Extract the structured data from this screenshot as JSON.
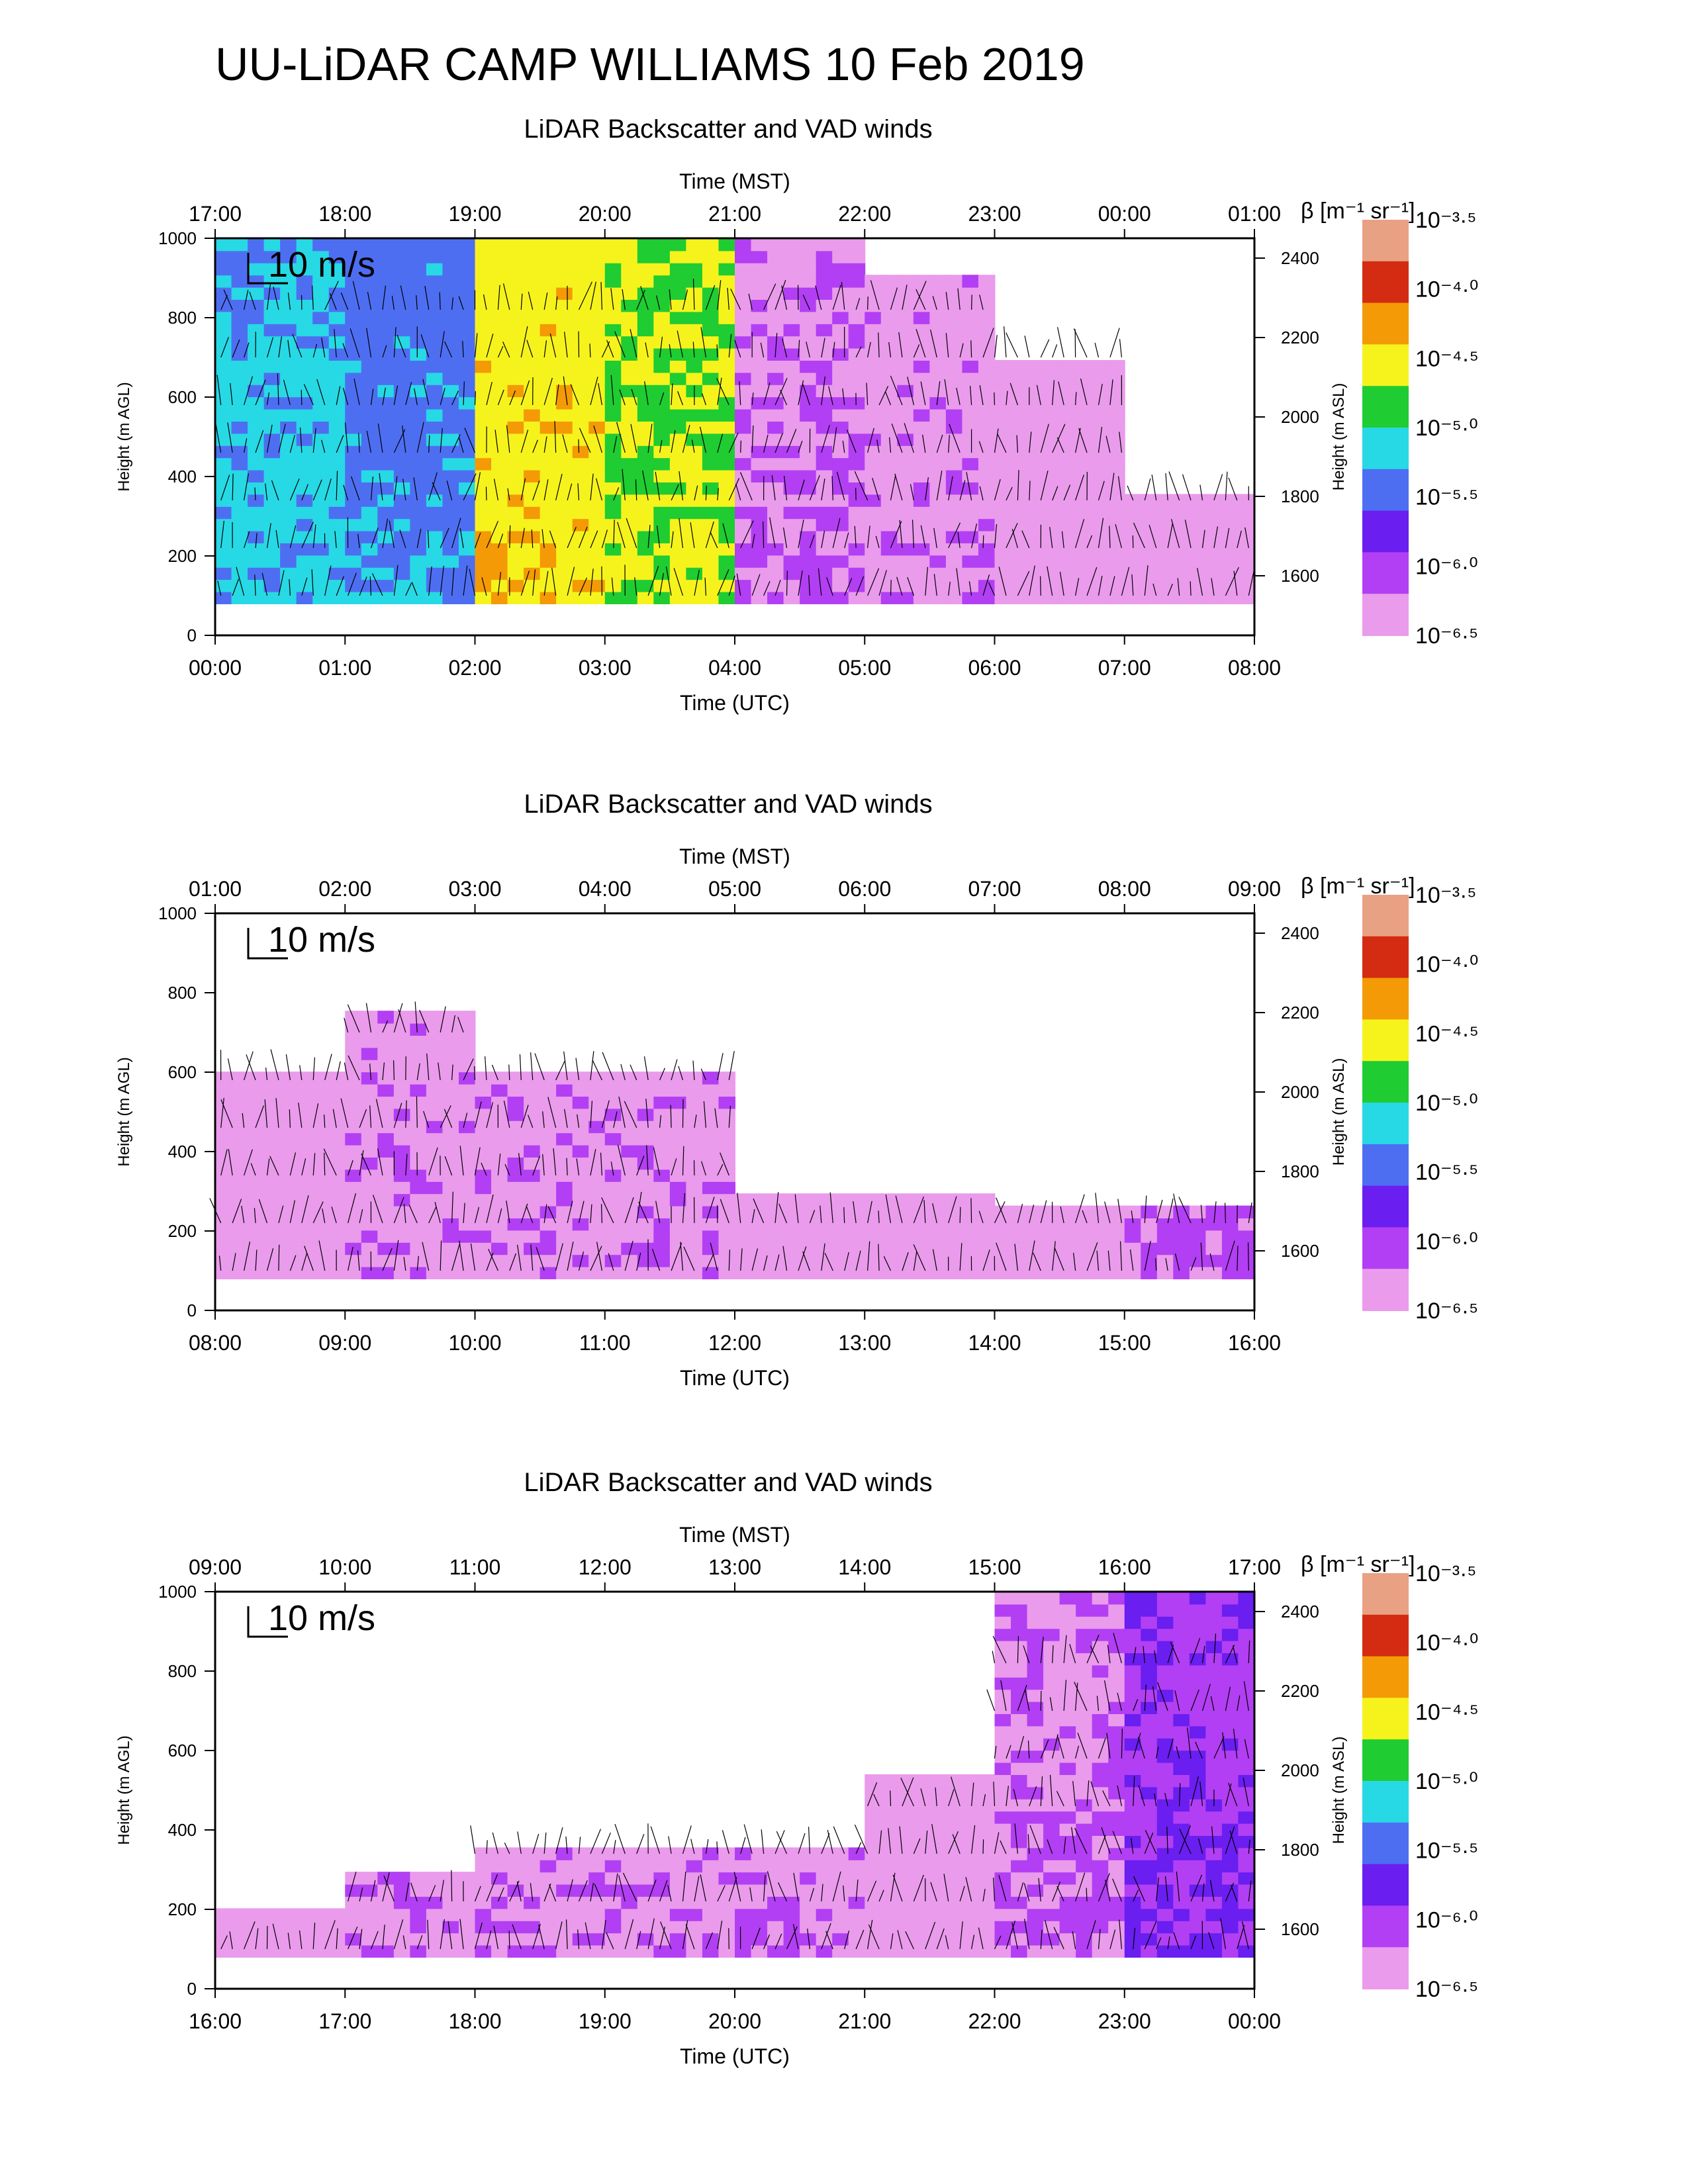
{
  "title": "UU-LiDAR CAMP WILLIAMS 10 Feb 2019",
  "colorbar": {
    "label": "β [m⁻¹ sr⁻¹]",
    "ticks": [
      "10⁻³·⁵",
      "10⁻⁴·⁰",
      "10⁻⁴·⁵",
      "10⁻⁵·⁰",
      "10⁻⁵·⁵",
      "10⁻⁶·⁰",
      "10⁻⁶·⁵"
    ],
    "colors": [
      "#e9a183",
      "#d32c12",
      "#f39a06",
      "#f6f31c",
      "#1fcc32",
      "#27d9e4",
      "#4e6ef2",
      "#6a1ef0",
      "#b23ff3",
      "#ea9bec"
    ]
  },
  "chart_data": [
    {
      "type": "heatmap",
      "title": "LiDAR Backscatter and VAD winds",
      "top_xlabel": "Time (MST)",
      "xlabel": "Time (UTC)",
      "ylabel": "Height (m AGL)",
      "y2label": "Height (m ASL)",
      "xticks_top": [
        "17:00",
        "18:00",
        "19:00",
        "20:00",
        "21:00",
        "22:00",
        "23:00",
        "00:00",
        "01:00"
      ],
      "xticks_bottom": [
        "00:00",
        "01:00",
        "02:00",
        "03:00",
        "04:00",
        "05:00",
        "06:00",
        "07:00",
        "08:00"
      ],
      "yticks": [
        "0",
        "200",
        "400",
        "600",
        "800",
        "1000"
      ],
      "ylim": [
        0,
        1000
      ],
      "y2ticks": [
        "1600",
        "1800",
        "2000",
        "2200",
        "2400"
      ],
      "y2lim": [
        1450,
        2450
      ],
      "wind_scale_label": "10 m/s",
      "backscatter_log10_by_hour": [
        -5.2,
        -5.4,
        -4.4,
        -4.6,
        -6.3,
        -6.4,
        -6.5,
        -6.5
      ],
      "data_top_m_by_hour": [
        1000,
        1000,
        1000,
        1000,
        1000,
        900,
        700,
        350
      ]
    },
    {
      "type": "heatmap",
      "title": "LiDAR Backscatter and VAD winds",
      "top_xlabel": "Time (MST)",
      "xlabel": "Time (UTC)",
      "ylabel": "Height (m AGL)",
      "y2label": "Height (m ASL)",
      "xticks_top": [
        "01:00",
        "02:00",
        "03:00",
        "04:00",
        "05:00",
        "06:00",
        "07:00",
        "08:00",
        "09:00"
      ],
      "xticks_bottom": [
        "08:00",
        "09:00",
        "10:00",
        "11:00",
        "12:00",
        "13:00",
        "14:00",
        "15:00",
        "16:00"
      ],
      "yticks": [
        "0",
        "200",
        "400",
        "600",
        "800",
        "1000"
      ],
      "ylim": [
        0,
        1000
      ],
      "y2ticks": [
        "1600",
        "1800",
        "2000",
        "2200",
        "2400"
      ],
      "y2lim": [
        1450,
        2450
      ],
      "wind_scale_label": "10 m/s",
      "backscatter_log10_by_hour": [
        -6.5,
        -6.4,
        -6.4,
        -6.4,
        -6.5,
        -6.5,
        -6.5,
        -6.3
      ],
      "data_top_m_by_hour": [
        600,
        750,
        600,
        600,
        300,
        300,
        250,
        250
      ]
    },
    {
      "type": "heatmap",
      "title": "LiDAR Backscatter and VAD winds",
      "top_xlabel": "Time (MST)",
      "xlabel": "Time (UTC)",
      "ylabel": "Height (m AGL)",
      "y2label": "Height (m ASL)",
      "xticks_top": [
        "09:00",
        "10:00",
        "11:00",
        "12:00",
        "13:00",
        "14:00",
        "15:00",
        "16:00",
        "17:00"
      ],
      "xticks_bottom": [
        "16:00",
        "17:00",
        "18:00",
        "19:00",
        "20:00",
        "21:00",
        "22:00",
        "23:00",
        "00:00"
      ],
      "yticks": [
        "0",
        "200",
        "400",
        "600",
        "800",
        "1000"
      ],
      "ylim": [
        0,
        1000
      ],
      "y2ticks": [
        "1600",
        "1800",
        "2000",
        "2200",
        "2400"
      ],
      "y2lim": [
        1450,
        2450
      ],
      "wind_scale_label": "10 m/s",
      "backscatter_log10_by_hour": [
        -6.5,
        -6.4,
        -6.4,
        -6.4,
        -6.4,
        -6.5,
        -6.3,
        -6.0
      ],
      "data_top_m_by_hour": [
        200,
        300,
        370,
        370,
        370,
        550,
        1000,
        1000
      ]
    }
  ]
}
